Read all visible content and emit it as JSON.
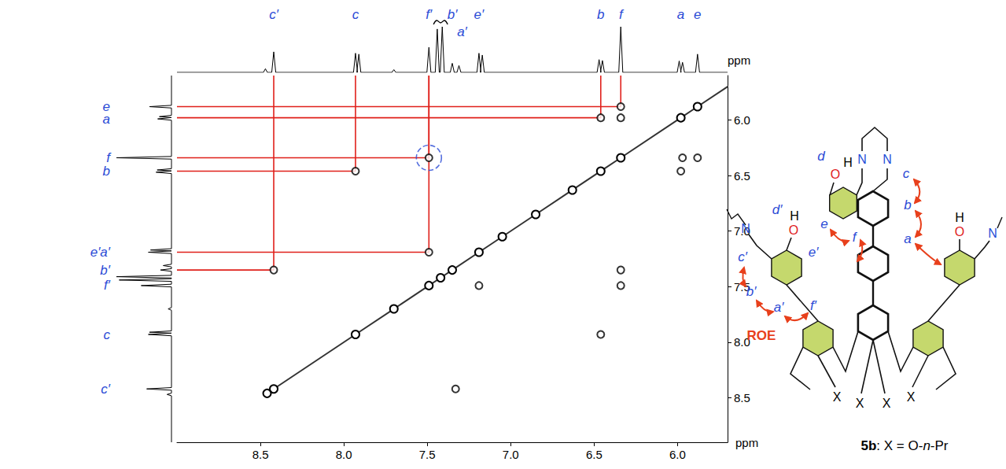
{
  "chart_data": {
    "type": "scatter",
    "x_label": "ppm",
    "y_label": "ppm",
    "xlim": [
      5.7,
      9.0
    ],
    "ylim": [
      5.6,
      8.9
    ],
    "xticks": [
      {
        "value": 6,
        "label": "6.0"
      },
      6.5,
      {
        "value": 7,
        "label": "7.0"
      },
      7.5,
      {
        "value": 8,
        "label": "8.0"
      },
      8.5
    ],
    "yticks": [
      {
        "value": 6,
        "label": "6.0"
      },
      6.5,
      {
        "value": 7,
        "label": "7.0"
      },
      7.5,
      {
        "value": 8,
        "label": "8.0"
      },
      8.5
    ],
    "grid": false,
    "spectrum_1d": {
      "ppm": [
        8.47,
        8.42,
        7.93,
        7.91,
        7.7,
        7.49,
        7.44,
        7.41,
        7.35,
        7.31,
        7.19,
        7.17,
        6.47,
        6.45,
        6.34,
        5.99,
        5.97,
        5.88
      ],
      "intensity": [
        0.08,
        0.45,
        0.42,
        0.4,
        0.06,
        0.55,
        0.95,
        1.0,
        0.2,
        0.15,
        0.42,
        0.38,
        0.28,
        0.26,
        1.0,
        0.25,
        0.22,
        0.4
      ],
      "truncated_peak": 7.42,
      "top_labels": [
        {
          "text": "c′",
          "ppm": 8.42
        },
        {
          "text": "c",
          "ppm": 7.93
        },
        {
          "text": "f′",
          "ppm": 7.49
        },
        {
          "text": "b′",
          "ppm": 7.35
        },
        {
          "text": "a′",
          "ppm": 7.31
        },
        {
          "text": "e′",
          "ppm": 7.19
        },
        {
          "text": "b",
          "ppm": 6.46
        },
        {
          "text": "f",
          "ppm": 6.34
        },
        {
          "text": "a",
          "ppm": 5.98
        },
        {
          "text": "e",
          "ppm": 5.88
        }
      ],
      "left_labels": [
        {
          "text": "e",
          "ppm": 5.88
        },
        {
          "text": "a",
          "ppm": 5.98
        },
        {
          "text": "f",
          "ppm": 6.34
        },
        {
          "text": "b",
          "ppm": 6.46
        },
        {
          "text": "e′a′",
          "ppm": 7.19
        },
        {
          "text": "b′",
          "ppm": 7.35
        },
        {
          "text": "f′",
          "ppm": 7.49
        },
        {
          "text": "c",
          "ppm": 7.93
        },
        {
          "text": "c′",
          "ppm": 8.42
        }
      ]
    },
    "diagonal": [
      8.46,
      8.42,
      7.93,
      7.7,
      7.49,
      7.42,
      7.35,
      7.19,
      7.05,
      6.85,
      6.63,
      6.46,
      6.34,
      5.98,
      5.88,
      5.65
    ],
    "cross_peaks": {
      "x": [
        8.42,
        7.93,
        7.49,
        7.49,
        6.46,
        6.34,
        6.34,
        7.33,
        6.46,
        6.34,
        7.19,
        5.98,
        5.88,
        6.34,
        5.97
      ],
      "y": [
        7.35,
        6.46,
        6.34,
        7.19,
        5.98,
        5.98,
        5.88,
        8.42,
        7.93,
        7.49,
        7.49,
        6.46,
        6.34,
        7.35,
        6.34
      ]
    },
    "correlations": {
      "x": [
        8.42,
        7.93,
        7.49,
        7.49,
        6.46,
        6.34
      ],
      "y": [
        7.35,
        6.46,
        6.34,
        7.19,
        5.98,
        5.88
      ],
      "circled": [
        false,
        false,
        true,
        false,
        false,
        false
      ],
      "color": "#e0201b"
    }
  },
  "structure": {
    "atoms": [
      {
        "text": "N",
        "color": "#1f4fd8"
      },
      {
        "text": "N",
        "color": "#1f4fd8"
      },
      {
        "text": "O",
        "color": "#e0201b"
      },
      {
        "text": "H",
        "color": "#000000"
      },
      {
        "text": "N",
        "color": "#1f4fd8"
      },
      {
        "text": "O",
        "color": "#e0201b"
      },
      {
        "text": "H",
        "color": "#000000"
      },
      {
        "text": "O",
        "color": "#e0201b"
      },
      {
        "text": "H",
        "color": "#000000"
      },
      {
        "text": "N",
        "color": "#1f4fd8"
      },
      {
        "text": "X",
        "color": "#000000"
      },
      {
        "text": "X",
        "color": "#000000"
      },
      {
        "text": "X",
        "color": "#000000"
      },
      {
        "text": "X",
        "color": "#000000"
      }
    ],
    "protons": [
      "c",
      "b",
      "a",
      "d",
      "e",
      "f",
      "e′",
      "f′",
      "a′",
      "b′",
      "c′",
      "d′"
    ],
    "roe_label": "ROE",
    "roe_color": "#e8401c",
    "ring_color": "#c5d86d",
    "caption": [
      "5b",
      ": X = O-",
      "n",
      "-Pr"
    ]
  }
}
